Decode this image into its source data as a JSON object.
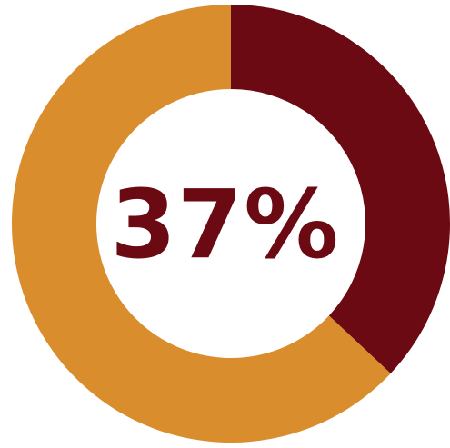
{
  "chart_data": {
    "type": "pie",
    "labels": [
      "",
      ""
    ],
    "values": [
      37,
      63
    ],
    "colors": [
      "#6b0a12",
      "#d98d2d"
    ],
    "center_label": "37%",
    "center_label_color": "#6b0a12",
    "legend": "none"
  }
}
